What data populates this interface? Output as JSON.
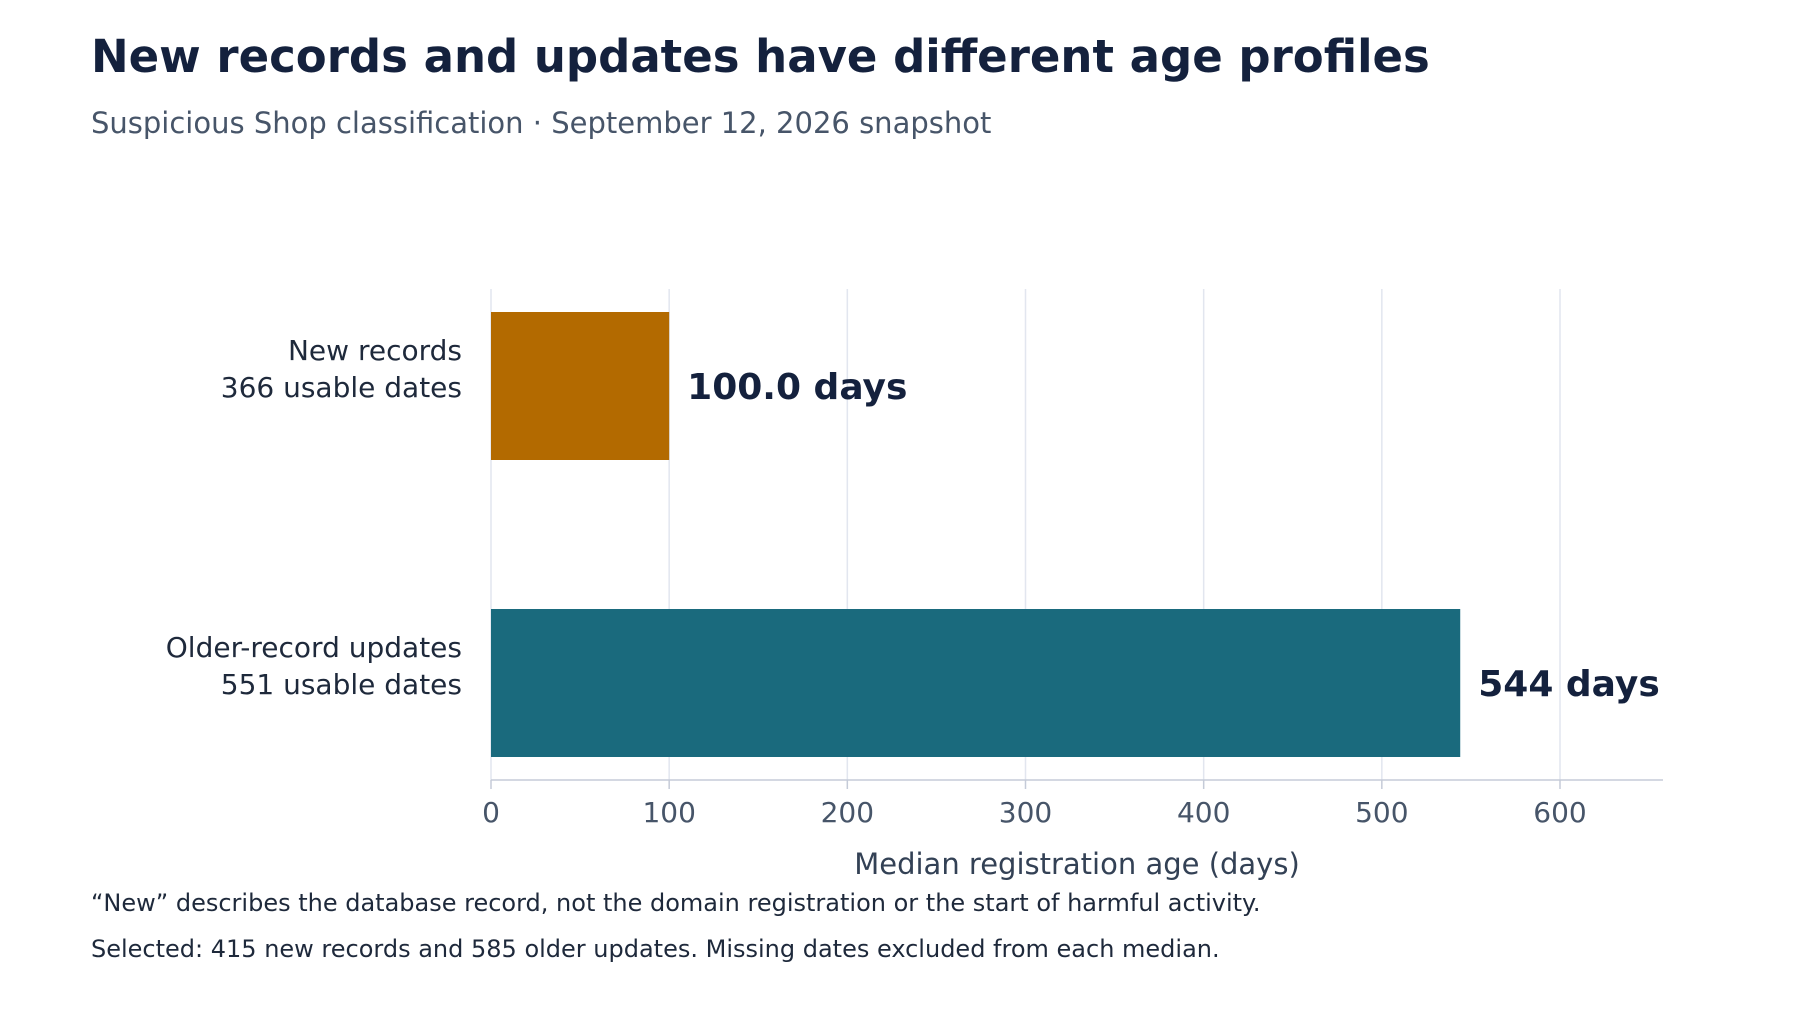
{
  "chart_data": {
    "type": "bar",
    "orientation": "horizontal",
    "title": "New records and updates have different age profiles",
    "subtitle": "Suspicious Shop classification · September 12, 2026 snapshot",
    "xlabel": "Median registration age (days)",
    "ylabel": "",
    "xlim": [
      0,
      650
    ],
    "xticks": [
      0,
      100,
      200,
      300,
      400,
      500,
      600
    ],
    "grid": "vertical",
    "categories": [
      [
        "New records",
        "366 usable dates"
      ],
      [
        "Older-record updates",
        "551 usable dates"
      ]
    ],
    "values": [
      100.0,
      544
    ],
    "data_labels": [
      "100.0 days",
      "544 days"
    ],
    "colors": [
      "#b36a00",
      "#1a6a7d"
    ]
  },
  "footnotes": [
    "“New” describes the database record, not the domain registration or the start of harmful activity.",
    "Selected: 415 new records and 585 older updates. Missing dates excluded from each median."
  ]
}
